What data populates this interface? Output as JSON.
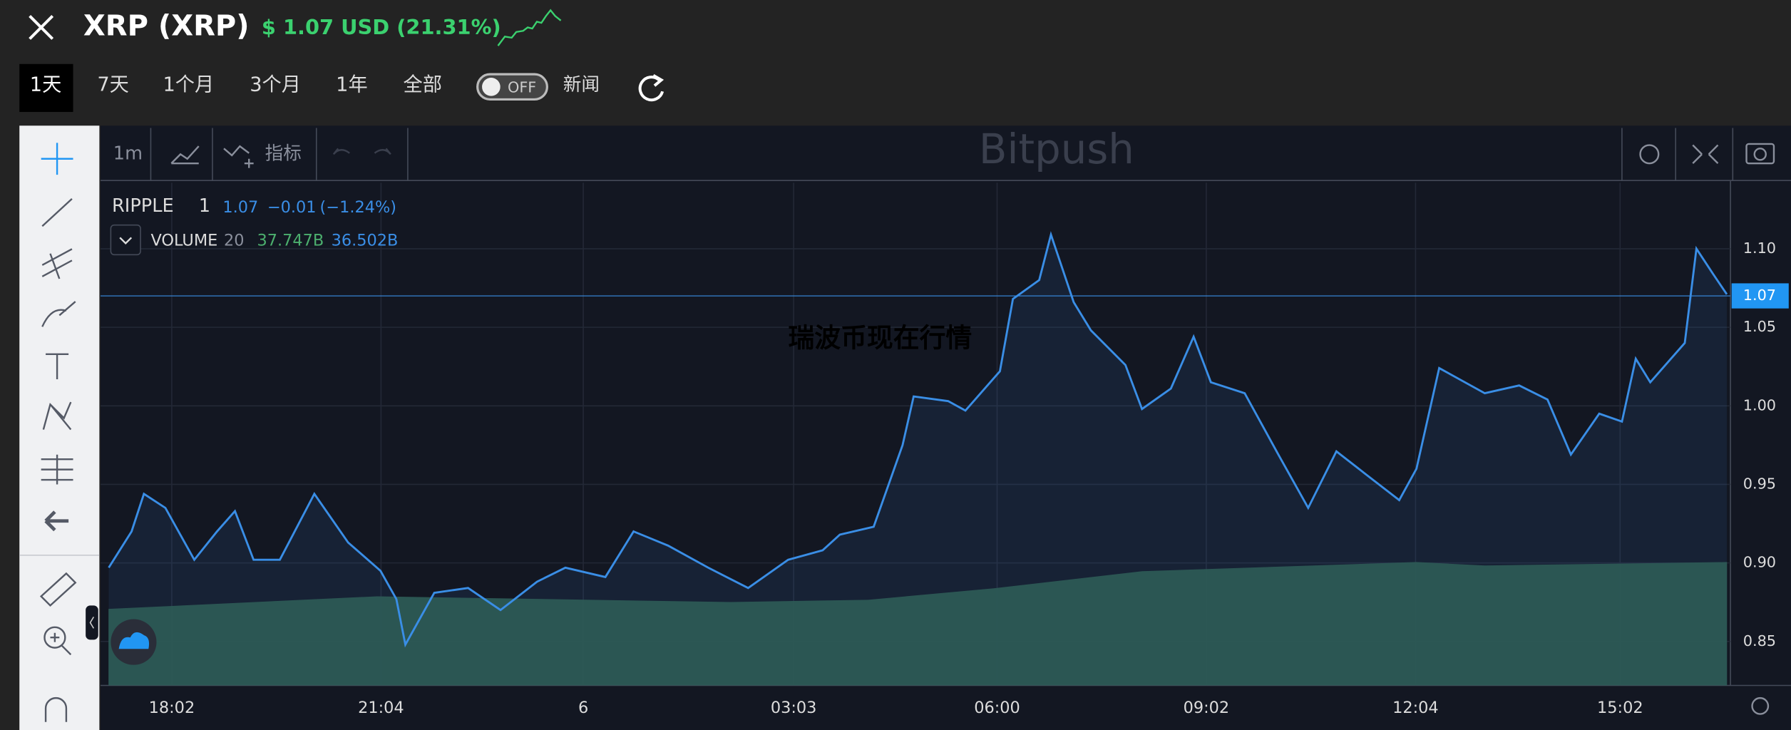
{
  "header": {
    "title": "XRP (XRP)",
    "price": "$ 1.07 USD (21.31%)"
  },
  "ranges": [
    "1天",
    "7天",
    "1个月",
    "3个月",
    "1年",
    "全部"
  ],
  "toggle": "OFF",
  "news": "新闻",
  "toolbar": {
    "interval": "1m",
    "indicators": "指标",
    "watermark": "Bitpush"
  },
  "legend": {
    "symbol": "RIPPLE",
    "interval": "1",
    "last": "1.07",
    "change": "−0.01",
    "change_pct": "(−1.24%)",
    "volume": "VOLUME",
    "volume_period": "20",
    "volume_value": "37.747B",
    "volume_ma": "36.502B"
  },
  "overlay": "瑞波币现在行情",
  "chart_data": {
    "type": "line",
    "x": [
      0.12,
      0.45,
      0.63,
      0.94,
      1.36,
      1.69,
      1.95,
      2.22,
      2.6,
      3.1,
      3.59,
      4.06,
      4.29,
      4.42,
      4.84,
      5.33,
      5.8,
      6.33,
      6.74,
      7.32,
      7.73,
      8.23,
      8.81,
      9.39,
      9.97,
      10.47,
      10.72,
      11.21,
      11.63,
      11.79,
      12.29,
      12.54,
      13.04,
      13.23,
      13.61,
      13.78,
      14.11,
      14.36,
      14.86,
      15.1,
      15.52,
      15.85,
      16.1,
      16.59,
      17.09,
      17.51,
      17.92,
      18.33,
      18.83,
      19.08,
      19.41,
      20.07,
      20.57,
      20.98,
      21.32,
      21.73,
      22.06,
      22.26,
      22.47,
      22.97,
      23.14,
      23.38,
      23.58
    ],
    "series": [
      {
        "name": "RIPPLE",
        "color": "#3a8ee6",
        "values": [
          0.897,
          0.92,
          0.944,
          0.935,
          0.902,
          0.92,
          0.933,
          0.902,
          0.902,
          0.944,
          0.913,
          0.895,
          0.877,
          0.848,
          0.881,
          0.884,
          0.87,
          0.888,
          0.897,
          0.891,
          0.92,
          0.911,
          0.897,
          0.884,
          0.902,
          0.908,
          0.918,
          0.923,
          0.975,
          1.006,
          1.003,
          0.997,
          1.022,
          1.068,
          1.08,
          1.109,
          1.066,
          1.048,
          1.026,
          0.998,
          1.011,
          1.044,
          1.015,
          1.008,
          0.968,
          0.935,
          0.971,
          0.957,
          0.94,
          0.96,
          1.024,
          1.008,
          1.013,
          1.004,
          0.969,
          0.995,
          0.99,
          1.03,
          1.015,
          1.04,
          1.1,
          1.084,
          1.071
        ]
      }
    ],
    "last_price": 1.07,
    "xlim": [
      0,
      23.6
    ],
    "xticks": [
      {
        "value": 1.033,
        "label": "18:02"
      },
      {
        "value": 4.067,
        "label": "21:04"
      },
      {
        "value": 7,
        "label": "6"
      },
      {
        "value": 10.05,
        "label": "03:03"
      },
      {
        "value": 13,
        "label": "06:00"
      },
      {
        "value": 16.033,
        "label": "09:02"
      },
      {
        "value": 19.067,
        "label": "12:04"
      },
      {
        "value": 22.033,
        "label": "15:02"
      }
    ],
    "ylim": [
      0.822,
      1.142
    ],
    "yticks": [
      0.85,
      {
        "value": 0.9,
        "label": "0.90"
      },
      0.95,
      {
        "value": 1,
        "label": "1.00"
      },
      1.05,
      {
        "value": 1.1,
        "label": "1.10"
      }
    ],
    "grid": true
  }
}
